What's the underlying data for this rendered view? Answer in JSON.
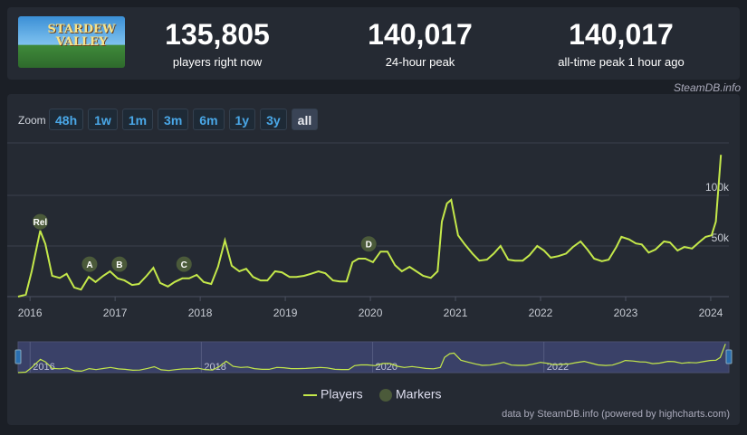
{
  "header": {
    "logo_text": "STARDEW VALLEY",
    "stats": [
      {
        "value": "135,805",
        "label": "players right now"
      },
      {
        "value": "140,017",
        "label": "24-hour peak"
      },
      {
        "value": "140,017",
        "label": "all-time peak 1 hour ago"
      }
    ],
    "source": "SteamDB.info"
  },
  "zoom": {
    "label": "Zoom",
    "buttons": [
      "48h",
      "1w",
      "1m",
      "3m",
      "6m",
      "1y",
      "3y",
      "all"
    ],
    "active": "all"
  },
  "chart_data": {
    "type": "line",
    "x": [
      2015.86,
      2015.95,
      2016.02,
      2016.12,
      2016.18,
      2016.26,
      2016.35,
      2016.43,
      2016.52,
      2016.6,
      2016.69,
      2016.77,
      2016.86,
      2016.94,
      2017.03,
      2017.11,
      2017.2,
      2017.28,
      2017.37,
      2017.45,
      2017.53,
      2017.62,
      2017.7,
      2017.79,
      2017.87,
      2017.96,
      2018.04,
      2018.13,
      2018.21,
      2018.29,
      2018.37,
      2018.46,
      2018.54,
      2018.62,
      2018.71,
      2018.79,
      2018.88,
      2018.96,
      2019.05,
      2019.13,
      2019.22,
      2019.3,
      2019.39,
      2019.47,
      2019.56,
      2019.64,
      2019.72,
      2019.79,
      2019.86,
      2019.94,
      2020.03,
      2020.12,
      2020.2,
      2020.29,
      2020.37,
      2020.46,
      2020.54,
      2020.62,
      2020.71,
      2020.79,
      2020.84,
      2020.9,
      2020.95,
      2021.03,
      2021.11,
      2021.2,
      2021.28,
      2021.37,
      2021.45,
      2021.53,
      2021.62,
      2021.7,
      2021.79,
      2021.87,
      2021.96,
      2022.04,
      2022.12,
      2022.21,
      2022.3,
      2022.38,
      2022.47,
      2022.55,
      2022.63,
      2022.72,
      2022.8,
      2022.89,
      2022.95,
      2023.04,
      2023.12,
      2023.19,
      2023.27,
      2023.35,
      2023.45,
      2023.52,
      2023.61,
      2023.69,
      2023.78,
      2023.86,
      2023.94,
      2024.01,
      2024.06,
      2024.12
    ],
    "series": [
      {
        "name": "Players",
        "color": "#c4e84a",
        "values": [
          0,
          2000,
          25000,
          65000,
          52000,
          20500,
          18500,
          22500,
          9000,
          7000,
          19500,
          14500,
          20500,
          25000,
          18000,
          16000,
          11500,
          12500,
          20500,
          28500,
          13500,
          10000,
          14500,
          18000,
          18000,
          21500,
          14500,
          12500,
          29500,
          55500,
          30500,
          25000,
          27500,
          19500,
          16000,
          16000,
          25000,
          24000,
          19500,
          19500,
          20500,
          22500,
          25000,
          23000,
          16000,
          15000,
          15000,
          34000,
          37500,
          37500,
          34000,
          44500,
          44500,
          31000,
          25000,
          29500,
          25000,
          20500,
          18500,
          25000,
          74000,
          92000,
          95500,
          60500,
          51500,
          42500,
          35500,
          36500,
          42500,
          50000,
          36500,
          35500,
          35500,
          41000,
          50000,
          45500,
          38500,
          40000,
          42500,
          49000,
          54500,
          46500,
          37500,
          35000,
          36500,
          49000,
          59000,
          56500,
          52500,
          51500,
          43500,
          46500,
          54500,
          53500,
          45500,
          49000,
          47500,
          53500,
          59000,
          60500,
          74000,
          140000
        ]
      },
      {
        "name": "Markers",
        "color": "#4b5a3a",
        "x": [
          2016.12,
          2016.7,
          2017.05,
          2017.81,
          2019.98
        ],
        "values": [
          74000,
          32000,
          32000,
          32000,
          52000
        ],
        "labels": [
          "Rel",
          "A",
          "B",
          "C",
          "D"
        ]
      }
    ],
    "xlim": [
      2015.86,
      2024.16
    ],
    "xticks": [
      2016,
      2017,
      2018,
      2019,
      2020,
      2021,
      2022,
      2023,
      2024
    ],
    "ylim": [
      0,
      150000
    ],
    "yticks": [
      {
        "value": 50000,
        "label": "50k"
      },
      {
        "value": 100000,
        "label": "100k"
      }
    ],
    "grid": true,
    "navigator_xticks": [
      2016,
      2018,
      2020,
      2022
    ]
  },
  "footer": "data by SteamDB.info (powered by highcharts.com)"
}
